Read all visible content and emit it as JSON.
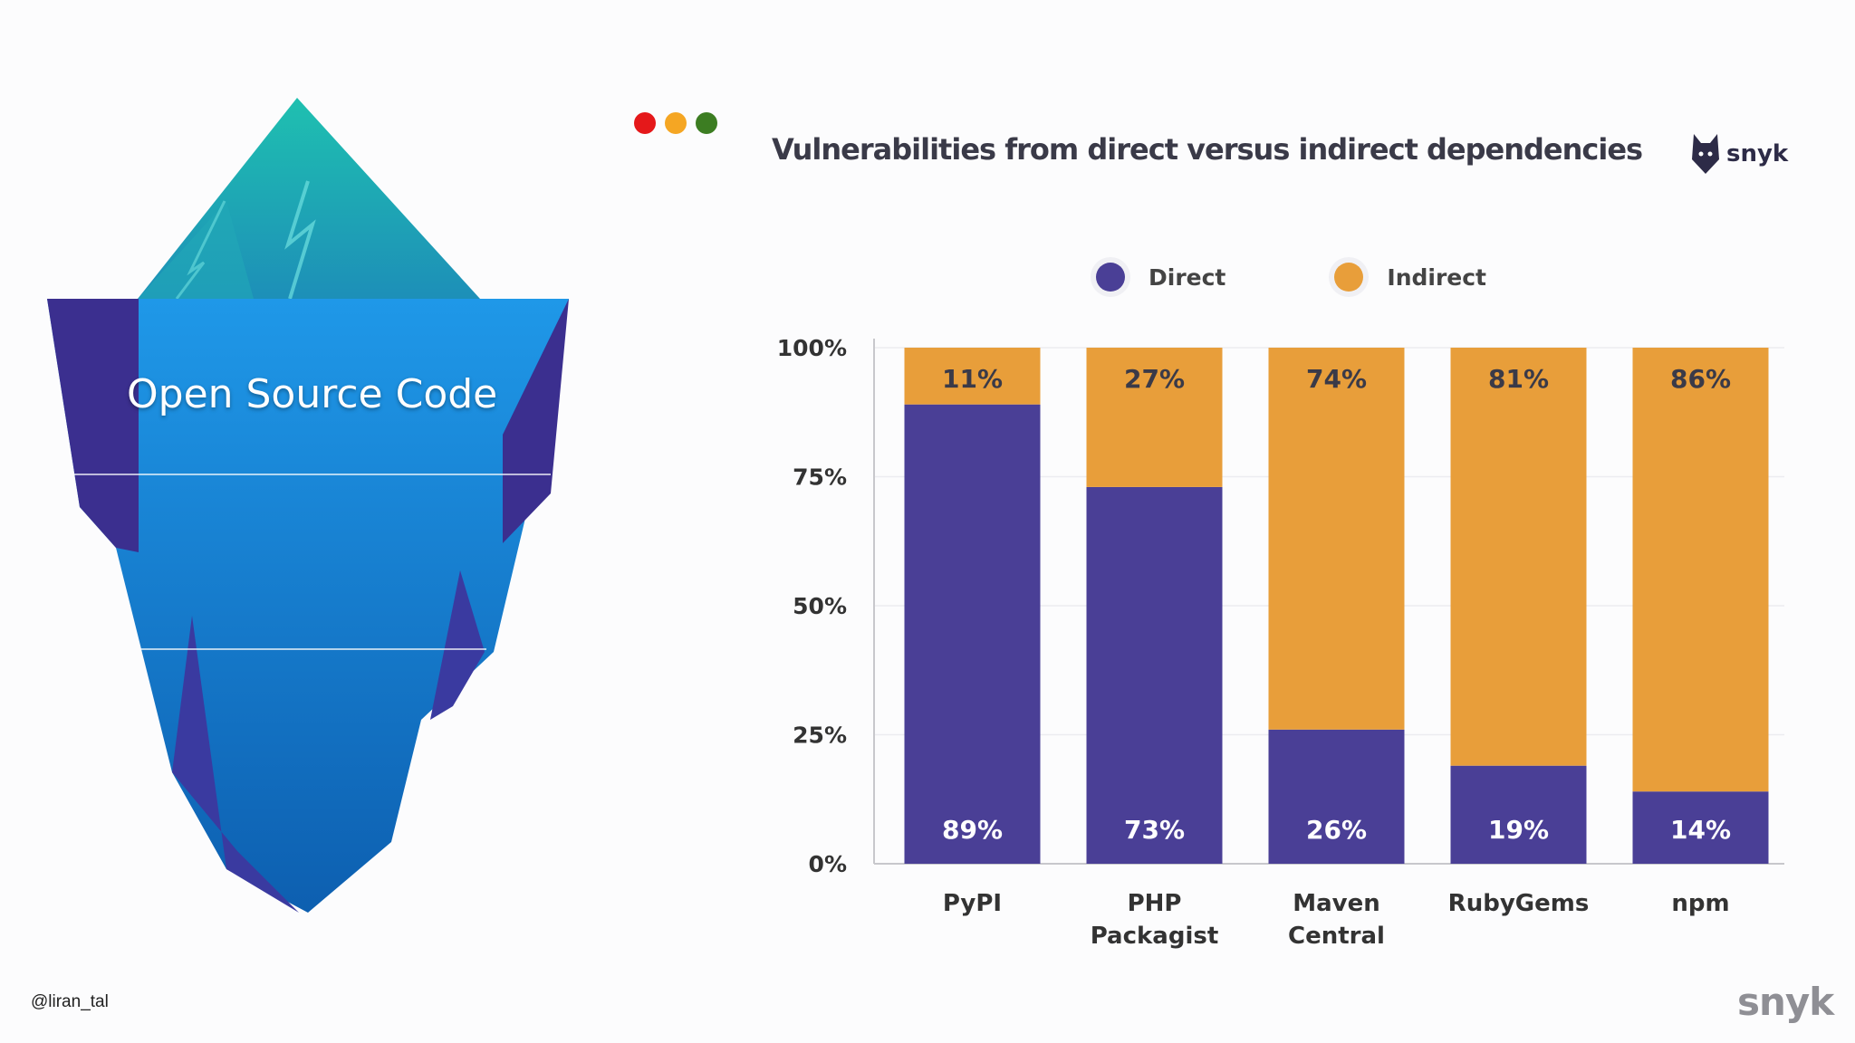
{
  "left_panel": {
    "iceberg_label": "Open Source Code"
  },
  "window_dots": [
    "#e5181a",
    "#f5a623",
    "#3c7d22"
  ],
  "brand": {
    "logo_text": "snyk",
    "footer_logo_text": "snyk"
  },
  "footer": {
    "handle": "@liran_tal"
  },
  "colors": {
    "direct": "#4a3f96",
    "indirect": "#e89e3a",
    "iceberg_blue": "#1b8fe0",
    "iceberg_dark": "#3b2f8f",
    "iceberg_teal": "#1fb5b5"
  },
  "chart_data": {
    "type": "bar",
    "stacked": true,
    "title": "Vulnerabilities from direct versus indirect dependencies",
    "categories": [
      [
        "PyPI"
      ],
      [
        "PHP",
        "Packagist"
      ],
      [
        "Maven",
        "Central"
      ],
      [
        "RubyGems"
      ],
      [
        "npm"
      ]
    ],
    "series": [
      {
        "name": "Direct",
        "values": [
          89,
          73,
          26,
          19,
          14
        ],
        "labels": [
          "89%",
          "73%",
          "26%",
          "19%",
          "14%"
        ]
      },
      {
        "name": "Indirect",
        "values": [
          11,
          27,
          74,
          81,
          86
        ],
        "labels": [
          "11%",
          "27%",
          "74%",
          "81%",
          "86%"
        ]
      }
    ],
    "y_ticks": [
      0,
      25,
      50,
      75,
      100
    ],
    "y_tick_labels": [
      "0%",
      "25%",
      "50%",
      "75%",
      "100%"
    ],
    "ylim": [
      0,
      100
    ],
    "xlabel": "",
    "ylabel": "",
    "grid": true,
    "legend_position": "top"
  }
}
